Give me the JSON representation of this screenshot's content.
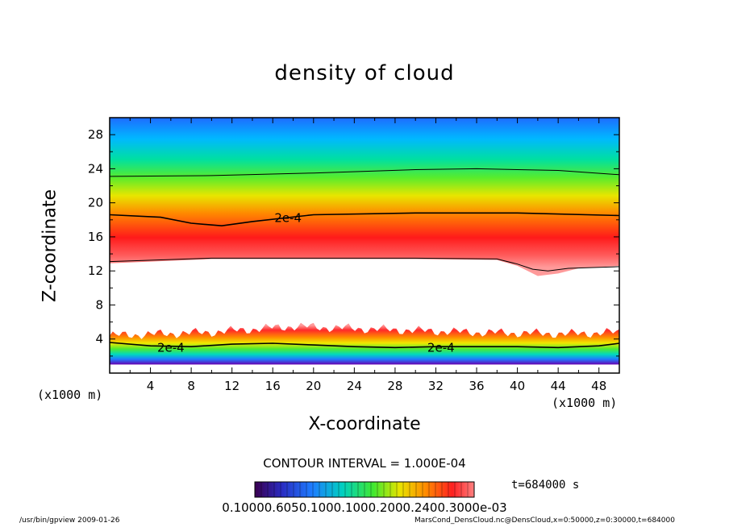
{
  "chart_data": {
    "type": "heatmap",
    "title": "density of cloud",
    "xlabel": "X-coordinate",
    "ylabel": "Z-coordinate",
    "x_unit_label": "(x1000 m)",
    "xlim": [
      0,
      50
    ],
    "ylim": [
      0,
      30
    ],
    "x_ticks": [
      "4",
      "8",
      "12",
      "16",
      "20",
      "24",
      "28",
      "32",
      "36",
      "40",
      "44",
      "48"
    ],
    "y_ticks": [
      "4",
      "8",
      "12",
      "16",
      "20",
      "24",
      "28"
    ],
    "upper_layer": {
      "bottom_z": [
        [
          0,
          12.9
        ],
        [
          10,
          13.4
        ],
        [
          20,
          13.4
        ],
        [
          30,
          13.4
        ],
        [
          38,
          13.3
        ],
        [
          40,
          12.6
        ],
        [
          42,
          11.4
        ],
        [
          44,
          11.7
        ],
        [
          46,
          12.3
        ],
        [
          50,
          12.6
        ]
      ],
      "peak_z": [
        [
          0,
          15.0
        ],
        [
          10,
          15.6
        ],
        [
          20,
          15.2
        ],
        [
          35,
          15.3
        ],
        [
          50,
          14.2
        ]
      ],
      "top_z": [
        [
          0,
          26.0
        ],
        [
          50,
          26.0
        ]
      ]
    },
    "lower_layer": {
      "top_z": [
        [
          0,
          4.4
        ],
        [
          10,
          4.8
        ],
        [
          18,
          5.5
        ],
        [
          25,
          5.2
        ],
        [
          35,
          4.8
        ],
        [
          45,
          4.6
        ],
        [
          50,
          4.8
        ]
      ],
      "bottom_z": [
        [
          0,
          1.0
        ],
        [
          50,
          1.0
        ]
      ]
    },
    "contours": [
      {
        "label": "2e-4",
        "points": [
          [
            0,
            18.6
          ],
          [
            5,
            18.3
          ],
          [
            8,
            17.6
          ],
          [
            11,
            17.3
          ],
          [
            14,
            17.8
          ],
          [
            20,
            18.6
          ],
          [
            30,
            18.8
          ],
          [
            40,
            18.8
          ],
          [
            50,
            18.5
          ]
        ],
        "label_at": [
          17.5,
          18.2
        ]
      },
      {
        "label": "",
        "points": [
          [
            0,
            23.1
          ],
          [
            10,
            23.2
          ],
          [
            20,
            23.5
          ],
          [
            30,
            23.9
          ],
          [
            36,
            24.0
          ],
          [
            44,
            23.8
          ],
          [
            50,
            23.3
          ]
        ]
      },
      {
        "label": "",
        "points": [
          [
            0,
            13.1
          ],
          [
            10,
            13.5
          ],
          [
            20,
            13.5
          ],
          [
            30,
            13.5
          ],
          [
            38,
            13.4
          ],
          [
            40,
            12.8
          ],
          [
            41.5,
            12.2
          ],
          [
            43,
            12.0
          ],
          [
            45,
            12.3
          ],
          [
            50,
            12.5
          ]
        ]
      },
      {
        "label": "2e-4",
        "points": [
          [
            0,
            3.6
          ],
          [
            4,
            3.2
          ],
          [
            8,
            3.1
          ],
          [
            12,
            3.4
          ],
          [
            16,
            3.5
          ],
          [
            20,
            3.3
          ],
          [
            24,
            3.1
          ],
          [
            28,
            3.0
          ],
          [
            32,
            3.1
          ],
          [
            36,
            3.1
          ],
          [
            40,
            3.1
          ],
          [
            44,
            3.0
          ],
          [
            48,
            3.2
          ],
          [
            50,
            3.5
          ]
        ],
        "label_at": [
          6.0,
          3.0
        ]
      },
      {
        "label": "2e-4",
        "points": [],
        "label_at": [
          32.5,
          3.0
        ]
      }
    ],
    "colorbar": {
      "tick_text": "0.10000.6050.1000.1000.2000.2400.3000e-03",
      "min": 0.1,
      "max": 0.3
    },
    "contour_interval_text": "CONTOUR INTERVAL = 1.000E-04",
    "time_text": "t=684000 s"
  },
  "footer": {
    "left": "/usr/bin/gpview   2009-01-26",
    "right": "MarsCond_DensCloud.nc@DensCloud,x=0:50000,z=0:30000,t=684000"
  },
  "colors": {
    "frame": "#000000",
    "background": "#ffffff"
  }
}
